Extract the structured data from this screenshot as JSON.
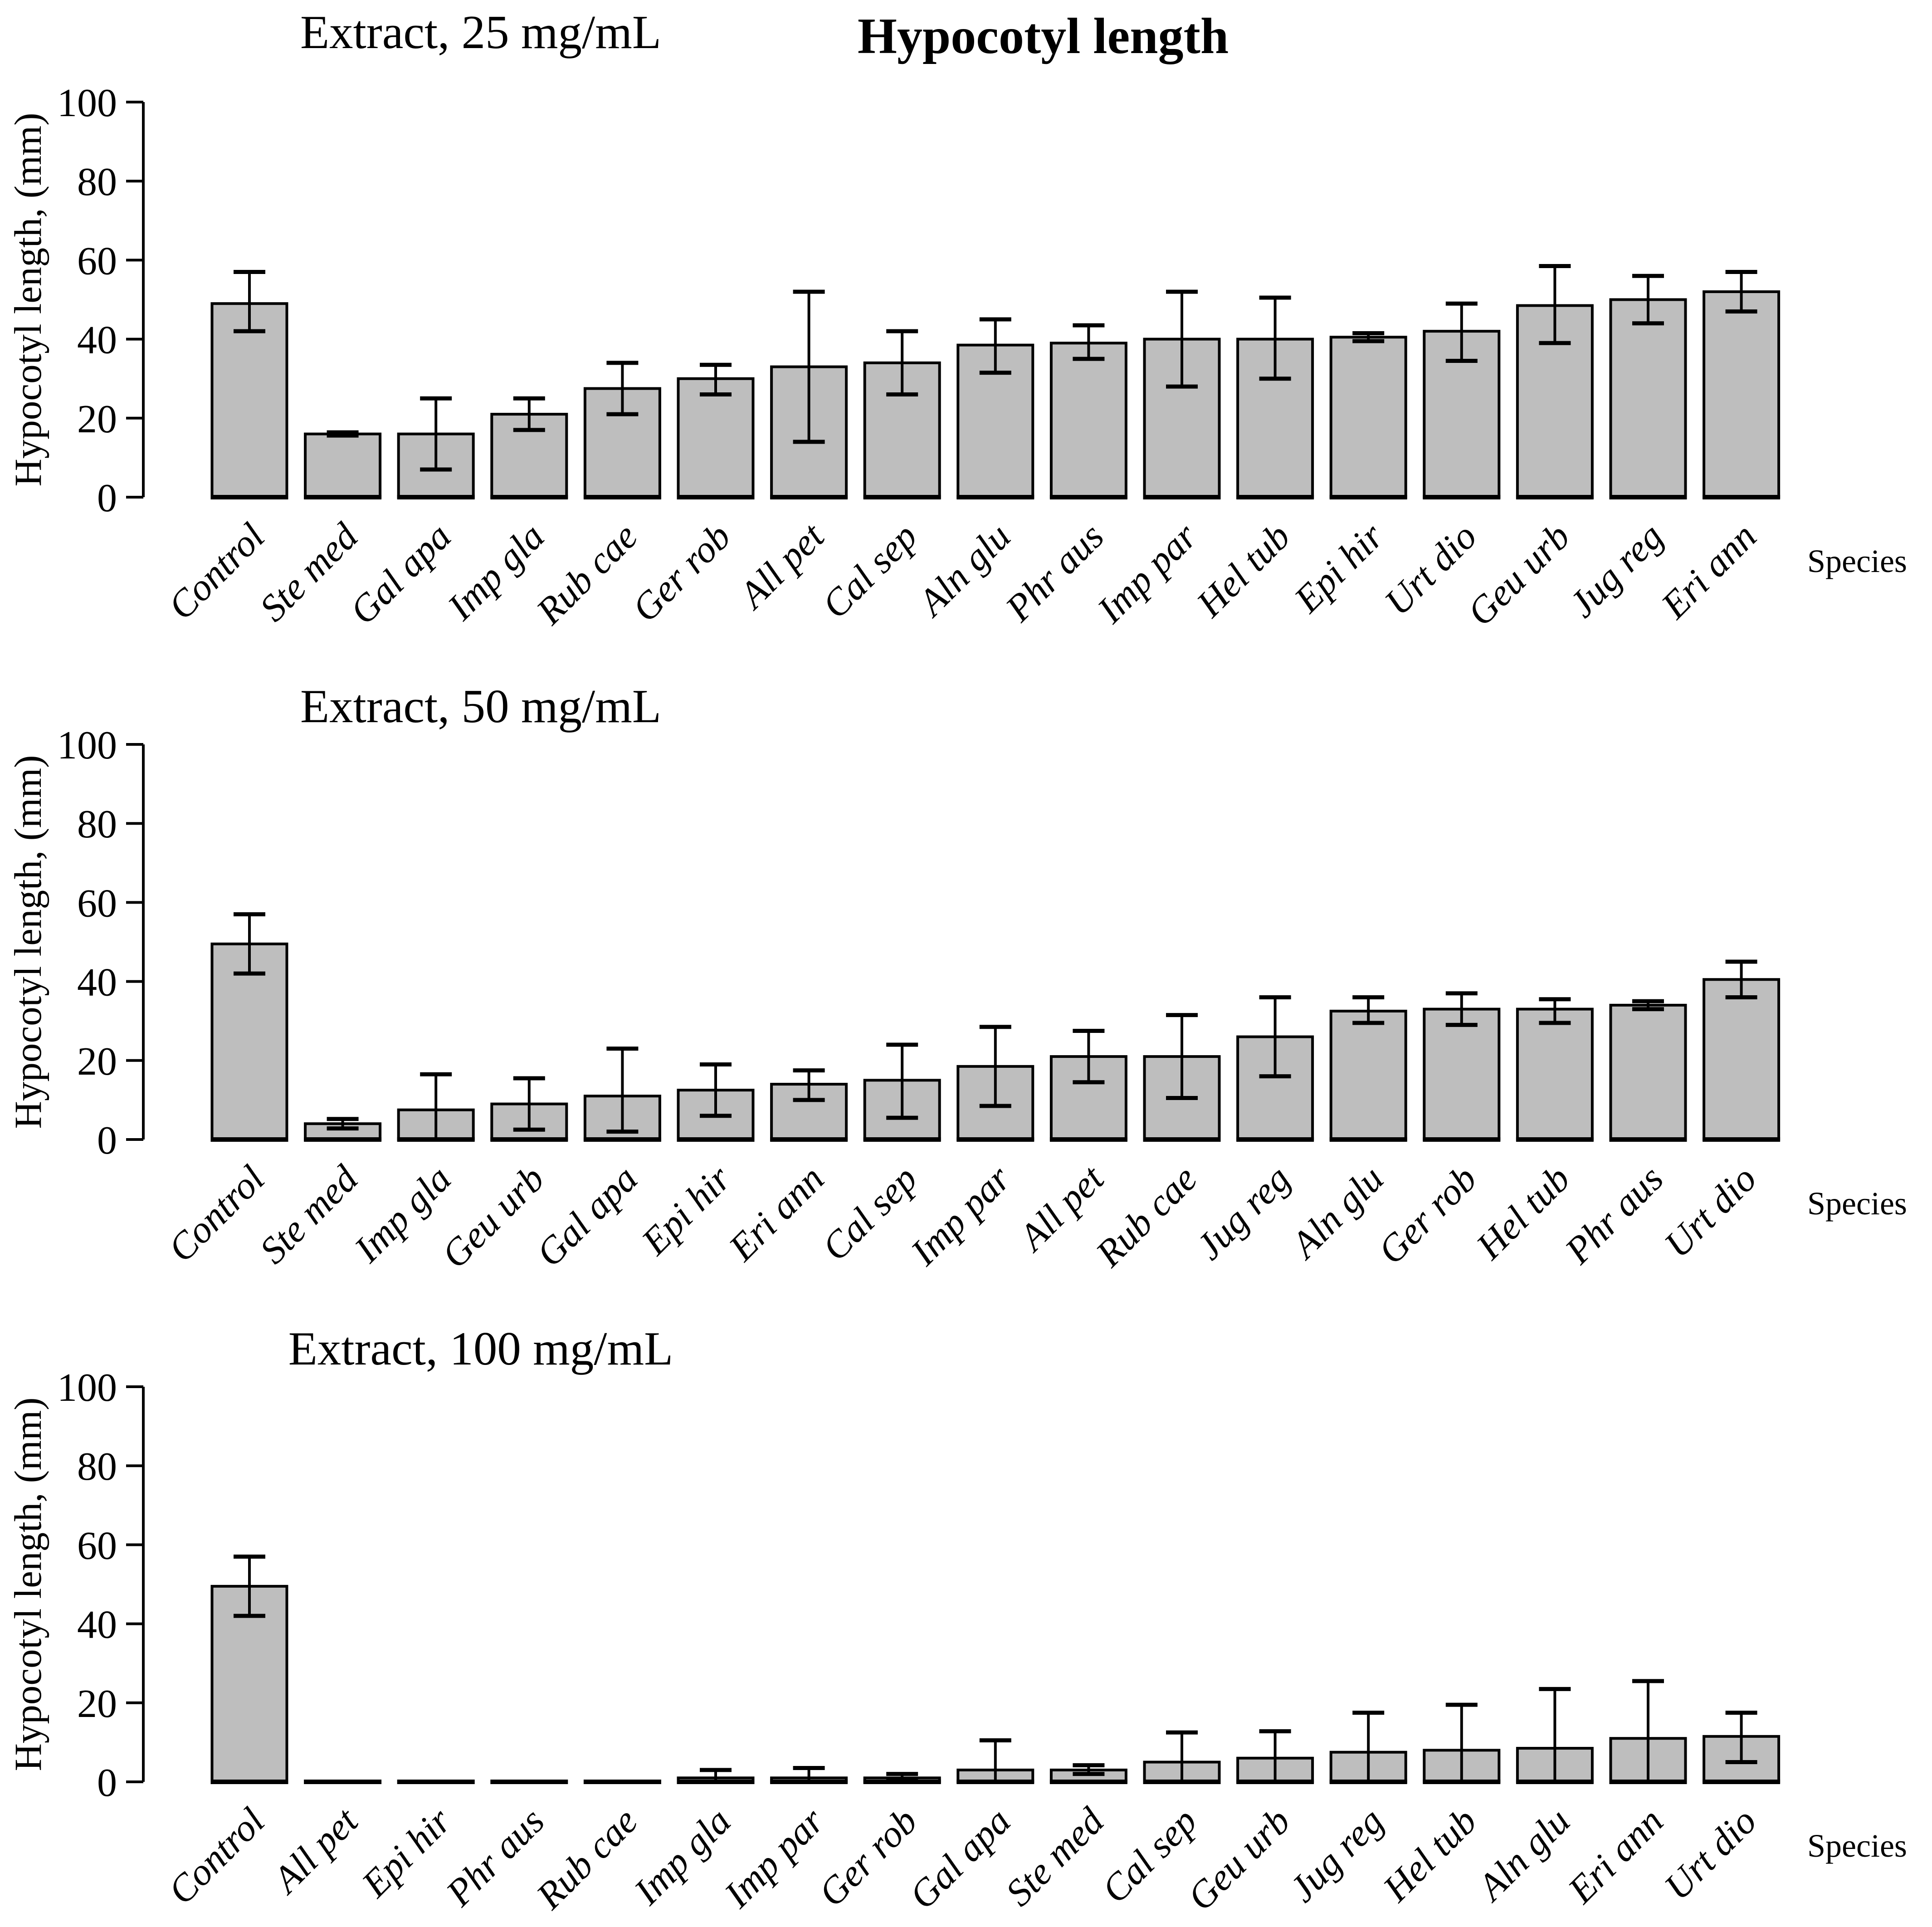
{
  "title": "Hypocotyl length",
  "y_axis_label": "Hypocotyl length, (mm)",
  "x_axis_label": "Species",
  "y_ticks": [
    0,
    20,
    40,
    60,
    80,
    100
  ],
  "colors": {
    "bar_fill": "#bebebe",
    "bar_stroke": "#000000",
    "axis": "#000000",
    "text": "#000000",
    "background": "#ffffff"
  },
  "chart_data": [
    {
      "type": "bar",
      "title": "Extract, 25 mg/mL",
      "xlabel": "Species",
      "ylabel": "Hypocotyl length, (mm)",
      "ylim": [
        0,
        100
      ],
      "grid": false,
      "categories": [
        "Control",
        "Ste med",
        "Gal apa",
        "Imp gla",
        "Rub cae",
        "Ger rob",
        "All pet",
        "Cal sep",
        "Aln glu",
        "Phr aus",
        "Imp par",
        "Hel tub",
        "Epi hir",
        "Urt dio",
        "Geu urb",
        "Jug reg",
        "Eri ann"
      ],
      "values": [
        49,
        16,
        16,
        21,
        27.5,
        30,
        33,
        34,
        38.5,
        39,
        40,
        40,
        40.5,
        42,
        48.5,
        50,
        52
      ],
      "error_low": [
        42,
        15.6,
        7,
        17,
        21,
        26,
        14,
        26,
        31.5,
        35,
        28,
        30,
        39.5,
        34.5,
        39,
        44,
        47
      ],
      "error_high": [
        57,
        16.4,
        25,
        25,
        34,
        33.5,
        52,
        42,
        45,
        43.5,
        52,
        50.5,
        41.5,
        49,
        58.5,
        56,
        57
      ]
    },
    {
      "type": "bar",
      "title": "Extract, 50 mg/mL",
      "xlabel": "Species",
      "ylabel": "Hypocotyl length, (mm)",
      "ylim": [
        0,
        100
      ],
      "grid": false,
      "categories": [
        "Control",
        "Ste med",
        "Imp gla",
        "Geu urb",
        "Gal apa",
        "Epi hir",
        "Eri ann",
        "Cal sep",
        "Imp par",
        "All pet",
        "Rub cae",
        "Jug reg",
        "Aln glu",
        "Ger rob",
        "Hel tub",
        "Phr aus",
        "Urt dio"
      ],
      "values": [
        49.5,
        4,
        7.5,
        9,
        11,
        12.5,
        14,
        15,
        18.5,
        21,
        21,
        26,
        32.5,
        33,
        33,
        34,
        40.5
      ],
      "error_low": [
        42,
        2.8,
        0,
        2.5,
        2,
        6,
        10,
        5.5,
        8.5,
        14.5,
        10.5,
        16,
        29.5,
        29,
        29.5,
        33,
        36
      ],
      "error_high": [
        57,
        5.2,
        16.5,
        15.5,
        23,
        19,
        17.5,
        24,
        28.5,
        27.5,
        31.5,
        36,
        36,
        37,
        35.5,
        35,
        45
      ]
    },
    {
      "type": "bar",
      "title": "Extract, 100 mg/mL",
      "xlabel": "Species",
      "ylabel": "Hypocotyl length, (mm)",
      "ylim": [
        0,
        100
      ],
      "grid": false,
      "categories": [
        "Control",
        "All pet",
        "Epi hir",
        "Phr aus",
        "Rub cae",
        "Imp gla",
        "Imp par",
        "Ger rob",
        "Gal apa",
        "Ste med",
        "Cal sep",
        "Geu urb",
        "Jug reg",
        "Hel tub",
        "Aln glu",
        "Eri ann",
        "Urt dio"
      ],
      "values": [
        49.5,
        0,
        0,
        0,
        0,
        1,
        1,
        1,
        3,
        3,
        5,
        6,
        7.5,
        8,
        8.5,
        11,
        11.5
      ],
      "error_low": [
        42,
        null,
        null,
        null,
        null,
        0,
        0,
        0.5,
        0,
        2,
        0,
        0,
        0,
        0,
        0,
        0,
        5
      ],
      "error_high": [
        57,
        null,
        null,
        null,
        null,
        3,
        3.5,
        2,
        10.5,
        4.2,
        12.5,
        12.8,
        17.5,
        19.5,
        23.5,
        25.5,
        17.5
      ]
    }
  ]
}
